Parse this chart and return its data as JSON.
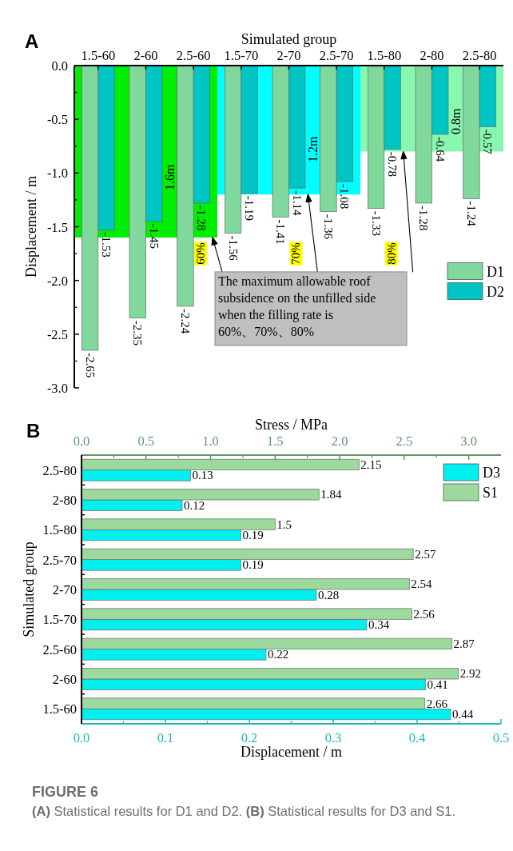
{
  "chart_data": [
    {
      "type": "bar",
      "title": "A",
      "xlabel": "Simulated group",
      "ylabel": "Displacement / m",
      "categories": [
        "1.5-60",
        "2-60",
        "2.5-60",
        "1.5-70",
        "2-70",
        "2.5-70",
        "1.5-80",
        "2-80",
        "2.5-80"
      ],
      "series": [
        {
          "name": "D1",
          "color": "#80d89c",
          "values": [
            -2.65,
            -2.35,
            -2.24,
            -1.56,
            -1.41,
            -1.36,
            -1.33,
            -1.28,
            -1.24
          ]
        },
        {
          "name": "D2",
          "color": "#00c5c5",
          "values": [
            -1.53,
            -1.45,
            -1.28,
            -1.19,
            -1.14,
            -1.08,
            -0.78,
            -0.64,
            -0.57
          ]
        }
      ],
      "ylim": [
        -3,
        0
      ],
      "yticks": [
        {
          "value": -3,
          "label": "-3.0"
        },
        {
          "value": -2.5,
          "label": "-2.5"
        },
        {
          "value": -2,
          "label": "-2.0"
        },
        {
          "value": -1.5,
          "label": "-1.5"
        },
        {
          "value": -1,
          "label": "-1.0"
        },
        {
          "value": -0.5,
          "label": "-0.5"
        },
        {
          "value": 0,
          "label": "0.0"
        }
      ],
      "bands": [
        {
          "axis": "y",
          "from": -1.6,
          "to": 0,
          "label": "1.6m",
          "color": "#00ee00"
        },
        {
          "axis": "y",
          "from": -1.2,
          "to": 0,
          "label": "1.2m",
          "color": "#00ffff"
        },
        {
          "axis": "y",
          "from": -0.8,
          "to": 0,
          "label": "0.8m",
          "color": "#88f8b0"
        }
      ],
      "annotations": [
        "60%",
        "70%",
        "80%",
        "The maximum allowable roof subsidence on the unfilled side when the filling rate is 60%、70%、80%"
      ],
      "data_labels": true,
      "legend": "right"
    },
    {
      "type": "bar",
      "orientation": "horizontal",
      "title": "B",
      "xlabel": "Displacement / m",
      "x2label": "Stress / MPa",
      "ylabel": "Simulated group",
      "categories": [
        "2.5-80",
        "2-80",
        "1.5-80",
        "2.5-70",
        "2-70",
        "1.5-70",
        "2.5-60",
        "2-60",
        "1.5-60"
      ],
      "series": [
        {
          "name": "D3",
          "color": "#00f0f0",
          "values": [
            0.13,
            0.12,
            0.19,
            0.19,
            0.28,
            0.34,
            0.22,
            0.41,
            0.44
          ]
        },
        {
          "name": "S1",
          "color": "#9dd89d",
          "axis": "x2",
          "values": [
            2.15,
            1.84,
            1.5,
            2.57,
            2.54,
            2.56,
            2.87,
            2.92,
            2.66
          ]
        }
      ],
      "xlim": [
        0,
        0.5
      ],
      "xticks": [
        {
          "value": 0,
          "label": "0.0"
        },
        {
          "value": 0.1,
          "label": "0.1"
        },
        {
          "value": 0.2,
          "label": "0.2"
        },
        {
          "value": 0.3,
          "label": "0.3"
        },
        {
          "value": 0.4,
          "label": "0.4"
        },
        {
          "value": 0.5,
          "label": "0.5"
        }
      ],
      "x2lim": [
        0,
        3.25
      ],
      "x2ticks": [
        {
          "value": 0,
          "label": "0.0"
        },
        {
          "value": 0.5,
          "label": "0.5"
        },
        {
          "value": 1,
          "label": "1.0"
        },
        {
          "value": 1.5,
          "label": "1.5"
        },
        {
          "value": 2,
          "label": "2.0"
        },
        {
          "value": 2.5,
          "label": "2.5"
        },
        {
          "value": 3,
          "label": "3.0"
        }
      ],
      "annotations": [
        "FIGURE 6",
        "**(A)** Statistical results for D1 and D2. **(B)** Statistical results for D3 and S1."
      ],
      "data_labels": true,
      "legend": "top right"
    }
  ]
}
